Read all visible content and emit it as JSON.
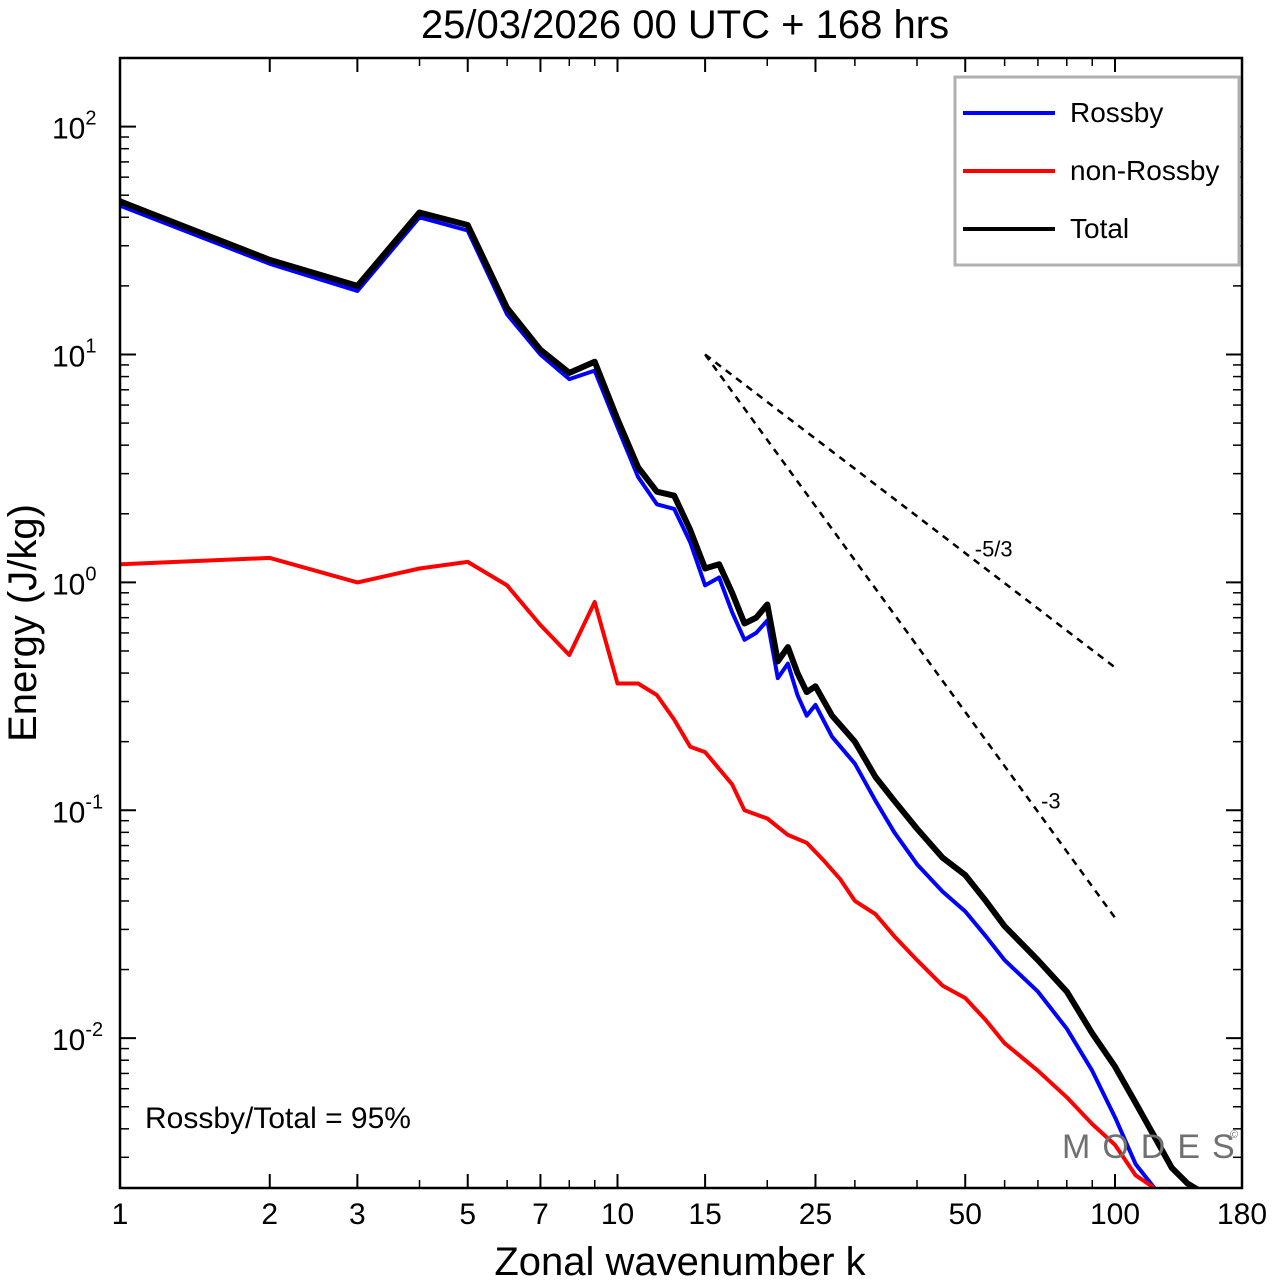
{
  "chart_data": {
    "type": "line",
    "title": "25/03/2026  00 UTC  + 168 hrs",
    "xlabel": "Zonal wavenumber k",
    "ylabel": "Energy (J/kg)",
    "xscale": "log",
    "yscale": "log",
    "xlim": [
      1,
      180
    ],
    "ylim": [
      0.0022,
      200
    ],
    "x_ticks": [
      1,
      2,
      3,
      5,
      7,
      10,
      15,
      25,
      50,
      100,
      180
    ],
    "x_tick_labels": [
      "1",
      "2",
      "3",
      "5",
      "7",
      "10",
      "15",
      "25",
      "50",
      "100",
      "180"
    ],
    "y_ticks": [
      {
        "value": 100,
        "base": "10",
        "exp": "2"
      },
      {
        "value": 10,
        "base": "10",
        "exp": "1"
      },
      {
        "value": 1,
        "base": "10",
        "exp": "0"
      },
      {
        "value": 0.1,
        "base": "10",
        "exp": "-1"
      },
      {
        "value": 0.01,
        "base": "10",
        "exp": "-2"
      }
    ],
    "legend_position": "top-right",
    "series": [
      {
        "name": "Rossby",
        "color": "#0000ff",
        "x": [
          1,
          2,
          3,
          4,
          5,
          6,
          7,
          8,
          9,
          10,
          11,
          12,
          13,
          14,
          15,
          16,
          17,
          18,
          19,
          20,
          21,
          22,
          23,
          24,
          25,
          27,
          30,
          33,
          36,
          40,
          45,
          50,
          55,
          60,
          70,
          80,
          90,
          100,
          110,
          120
        ],
        "values": [
          45,
          25,
          19,
          40,
          35,
          15,
          10,
          7.8,
          8.5,
          4.8,
          2.9,
          2.2,
          2.1,
          1.5,
          0.97,
          1.05,
          0.74,
          0.56,
          0.6,
          0.68,
          0.38,
          0.44,
          0.32,
          0.26,
          0.29,
          0.21,
          0.16,
          0.11,
          0.08,
          0.058,
          0.044,
          0.036,
          0.028,
          0.022,
          0.016,
          0.011,
          0.0072,
          0.0045,
          0.0028,
          0.0022
        ]
      },
      {
        "name": "non-Rossby",
        "color": "#ff0000",
        "x": [
          1,
          2,
          3,
          4,
          5,
          6,
          7,
          8,
          9,
          10,
          11,
          12,
          13,
          14,
          15,
          17,
          18,
          20,
          22,
          24,
          26,
          28,
          30,
          33,
          36,
          40,
          45,
          50,
          55,
          60,
          70,
          80,
          90,
          100,
          110,
          120
        ],
        "values": [
          1.2,
          1.28,
          1.0,
          1.15,
          1.23,
          0.97,
          0.65,
          0.48,
          0.82,
          0.36,
          0.36,
          0.32,
          0.25,
          0.19,
          0.18,
          0.13,
          0.1,
          0.092,
          0.078,
          0.072,
          0.06,
          0.05,
          0.04,
          0.035,
          0.028,
          0.022,
          0.017,
          0.015,
          0.012,
          0.0095,
          0.0072,
          0.0055,
          0.0042,
          0.0034,
          0.0025,
          0.0022
        ]
      },
      {
        "name": "Total",
        "color": "#000000",
        "x": [
          1,
          2,
          3,
          4,
          5,
          6,
          7,
          8,
          9,
          10,
          11,
          12,
          13,
          14,
          15,
          16,
          17,
          18,
          19,
          20,
          21,
          22,
          23,
          24,
          25,
          27,
          30,
          33,
          36,
          40,
          45,
          50,
          55,
          60,
          70,
          80,
          90,
          100,
          110,
          120,
          130,
          140,
          150
        ],
        "values": [
          47,
          26,
          20,
          42,
          37,
          16,
          10.5,
          8.3,
          9.3,
          5.2,
          3.2,
          2.5,
          2.4,
          1.7,
          1.15,
          1.2,
          0.9,
          0.66,
          0.7,
          0.8,
          0.45,
          0.52,
          0.4,
          0.33,
          0.35,
          0.26,
          0.2,
          0.14,
          0.11,
          0.083,
          0.062,
          0.052,
          0.04,
          0.031,
          0.022,
          0.016,
          0.0105,
          0.0075,
          0.0052,
          0.0037,
          0.0027,
          0.0023,
          0.0021
        ]
      }
    ],
    "reference_lines": [
      {
        "label": "-5/3",
        "slope": -1.6667,
        "x_start": 15,
        "x_end": 100,
        "y_start": 10
      },
      {
        "label": "-3",
        "slope": -3,
        "x_start": 15,
        "x_end": 100,
        "y_start": 10
      }
    ],
    "annotations": [
      {
        "text": "Rossby/Total = 95%",
        "position": "bottom-left"
      }
    ],
    "watermark": "MODES"
  }
}
